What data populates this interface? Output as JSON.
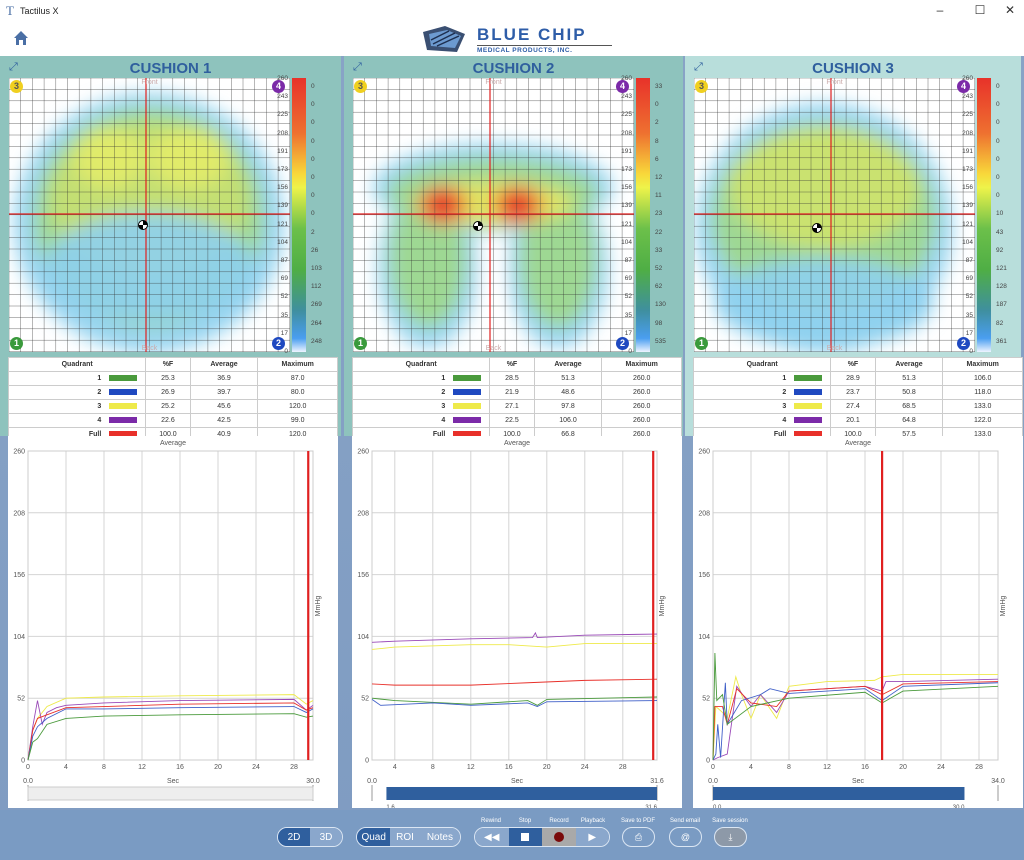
{
  "window": {
    "title": "Tactilus X",
    "icon": "tactilus-t-icon",
    "controls": [
      "minimize",
      "maximize",
      "close"
    ]
  },
  "header": {
    "home_icon": "home-icon",
    "logo_title": "BLUE CHIP",
    "logo_subtitle": "MEDICAL PRODUCTS, INC."
  },
  "scale_labels": [
    "260",
    "243",
    "225",
    "208",
    "191",
    "173",
    "156",
    "139",
    "121",
    "104",
    "87",
    "69",
    "52",
    "35",
    "17",
    "0"
  ],
  "quadrant_colors": {
    "1": "#4a9a3c",
    "2": "#1f49c0",
    "3": "#eeea4a",
    "4": "#7b2aa8",
    "Full": "#e8302a"
  },
  "table_headers": [
    "Quadrant",
    "%F",
    "Average",
    "Maximum"
  ],
  "cushions": [
    {
      "title": "CUSHION 1",
      "front_label": "Front",
      "back_label": "Back",
      "corners": [
        "3",
        "4",
        "1",
        "2"
      ],
      "scale_counts": [
        "0",
        "0",
        "0",
        "0",
        "0",
        "0",
        "0",
        "0",
        "2",
        "26",
        "103",
        "112",
        "269",
        "264",
        "248"
      ],
      "rows": [
        [
          "1",
          "25.3",
          "36.9",
          "87.0"
        ],
        [
          "2",
          "26.9",
          "39.7",
          "80.0"
        ],
        [
          "3",
          "25.2",
          "45.6",
          "120.0"
        ],
        [
          "4",
          "22.6",
          "42.5",
          "99.0"
        ],
        [
          "Full",
          "100.0",
          "40.9",
          "120.0"
        ]
      ]
    },
    {
      "title": "CUSHION 2",
      "front_label": "Front",
      "back_label": "Back",
      "corners": [
        "3",
        "4",
        "1",
        "2"
      ],
      "scale_counts": [
        "33",
        "0",
        "2",
        "8",
        "6",
        "12",
        "11",
        "23",
        "22",
        "33",
        "52",
        "62",
        "130",
        "98",
        "535"
      ],
      "rows": [
        [
          "1",
          "28.5",
          "51.3",
          "260.0"
        ],
        [
          "2",
          "21.9",
          "48.6",
          "260.0"
        ],
        [
          "3",
          "27.1",
          "97.8",
          "260.0"
        ],
        [
          "4",
          "22.5",
          "106.0",
          "260.0"
        ],
        [
          "Full",
          "100.0",
          "66.8",
          "260.0"
        ]
      ]
    },
    {
      "title": "CUSHION 3",
      "front_label": "Front",
      "back_label": "Back",
      "corners": [
        "3",
        "4",
        "1",
        "2"
      ],
      "scale_counts": [
        "0",
        "0",
        "0",
        "0",
        "0",
        "0",
        "0",
        "10",
        "43",
        "92",
        "121",
        "128",
        "187",
        "82",
        "361"
      ],
      "rows": [
        [
          "1",
          "28.9",
          "51.3",
          "106.0"
        ],
        [
          "2",
          "23.7",
          "50.8",
          "118.0"
        ],
        [
          "3",
          "27.4",
          "68.5",
          "133.0"
        ],
        [
          "4",
          "20.1",
          "64.8",
          "122.0"
        ],
        [
          "Full",
          "100.0",
          "57.5",
          "133.0"
        ]
      ]
    }
  ],
  "chart_data": [
    {
      "type": "line",
      "title": "Average",
      "xlabel": "Sec",
      "ylabel": "MmHg",
      "xlim": [
        0,
        30
      ],
      "ylim": [
        0,
        260
      ],
      "yticks": [
        0,
        52,
        104,
        156,
        208,
        260
      ],
      "xticks": [
        0,
        4,
        8,
        12,
        16,
        20,
        24,
        28
      ],
      "grid": true,
      "cursor": 29.5,
      "range": {
        "start": "0.0",
        "end": "30.0",
        "sel_start": null,
        "sel_end": null
      },
      "series": [
        {
          "quadrant": "3",
          "color": "#eeea4a",
          "points": [
            [
              0,
              0
            ],
            [
              0.5,
              25
            ],
            [
              1,
              35
            ],
            [
              2,
              45
            ],
            [
              4,
              52
            ],
            [
              8,
              53
            ],
            [
              16,
              54
            ],
            [
              28,
              55
            ],
            [
              29.3,
              47
            ],
            [
              30,
              50
            ]
          ]
        },
        {
          "quadrant": "4",
          "color": "#9a4ab8",
          "points": [
            [
              0,
              0
            ],
            [
              0.5,
              28
            ],
            [
              1,
              50
            ],
            [
              1.5,
              30
            ],
            [
              2,
              40
            ],
            [
              3,
              44
            ],
            [
              4,
              46
            ],
            [
              8,
              48
            ],
            [
              16,
              50
            ],
            [
              28,
              51
            ],
            [
              29.3,
              42
            ],
            [
              30,
              46
            ]
          ]
        },
        {
          "quadrant": "Full",
          "color": "#e8302a",
          "points": [
            [
              0,
              0
            ],
            [
              0.5,
              25
            ],
            [
              1,
              35
            ],
            [
              2,
              38
            ],
            [
              4,
              44
            ],
            [
              8,
              45
            ],
            [
              16,
              47
            ],
            [
              28,
              48
            ],
            [
              29.3,
              42
            ],
            [
              30,
              44
            ]
          ]
        },
        {
          "quadrant": "2",
          "color": "#3f5fc8",
          "points": [
            [
              0,
              0
            ],
            [
              0.5,
              20
            ],
            [
              1,
              28
            ],
            [
              2,
              35
            ],
            [
              4,
              43
            ],
            [
              8,
              43
            ],
            [
              16,
              44
            ],
            [
              28,
              45
            ],
            [
              29.3,
              40
            ],
            [
              30,
              43
            ]
          ]
        },
        {
          "quadrant": "1",
          "color": "#4a9a3c",
          "points": [
            [
              0,
              0
            ],
            [
              0.5,
              15
            ],
            [
              1,
              18
            ],
            [
              2,
              30
            ],
            [
              4,
              35
            ],
            [
              8,
              37
            ],
            [
              16,
              38
            ],
            [
              28,
              39
            ],
            [
              29.3,
              36
            ],
            [
              30,
              37
            ]
          ]
        }
      ]
    },
    {
      "type": "line",
      "title": "Average",
      "xlabel": "Sec",
      "ylabel": "MmHg",
      "xlim": [
        1.6,
        31.6
      ],
      "ylim": [
        0,
        260
      ],
      "yticks": [
        0,
        52,
        104,
        156,
        208,
        260
      ],
      "xticks": [
        4,
        8,
        12,
        16,
        20,
        24,
        28
      ],
      "grid": true,
      "cursor": 31.2,
      "range": {
        "start": "0.0",
        "end": "31.6",
        "sel_start": "1.6",
        "sel_end": "31.6"
      },
      "series": [
        {
          "quadrant": "4",
          "color": "#9a4ab8",
          "points": [
            [
              1.6,
              99
            ],
            [
              4,
              100
            ],
            [
              12,
              102
            ],
            [
              18.5,
              103
            ],
            [
              18.8,
              107
            ],
            [
              19,
              103
            ],
            [
              24,
              105
            ],
            [
              31.6,
              106
            ]
          ]
        },
        {
          "quadrant": "3",
          "color": "#eeea4a",
          "points": [
            [
              1.6,
              93
            ],
            [
              4,
              95
            ],
            [
              12,
              97
            ],
            [
              16,
              97
            ],
            [
              20,
              95
            ],
            [
              24,
              98
            ],
            [
              31.6,
              98
            ]
          ]
        },
        {
          "quadrant": "Full",
          "color": "#e8302a",
          "points": [
            [
              1.6,
              64
            ],
            [
              4,
              63
            ],
            [
              12,
              63
            ],
            [
              18,
              65
            ],
            [
              24,
              67
            ],
            [
              31.6,
              68
            ]
          ]
        },
        {
          "quadrant": "1",
          "color": "#4a9a3c",
          "points": [
            [
              1.6,
              52
            ],
            [
              4,
              50
            ],
            [
              12,
              47
            ],
            [
              18,
              50
            ],
            [
              19,
              46
            ],
            [
              20,
              51
            ],
            [
              31.6,
              53
            ]
          ]
        },
        {
          "quadrant": "2",
          "color": "#3f5fc8",
          "points": [
            [
              1.6,
              51
            ],
            [
              2.5,
              46
            ],
            [
              8,
              48
            ],
            [
              12,
              46
            ],
            [
              18,
              48
            ],
            [
              19,
              45
            ],
            [
              20,
              49
            ],
            [
              31.6,
              50
            ]
          ]
        }
      ]
    },
    {
      "type": "line",
      "title": "Average",
      "xlabel": "Sec",
      "ylabel": "MmHg",
      "xlim": [
        0,
        30
      ],
      "ylim": [
        0,
        260
      ],
      "yticks": [
        0,
        52,
        104,
        156,
        208,
        260
      ],
      "xticks": [
        0,
        4,
        8,
        12,
        16,
        20,
        24,
        28
      ],
      "grid": true,
      "cursor": 17.8,
      "range": {
        "start": "0.0",
        "end": "34.0",
        "sel_start": "0.0",
        "sel_end": "30.0"
      },
      "series": [
        {
          "quadrant": "3",
          "color": "#eeea4a",
          "points": [
            [
              0,
              0
            ],
            [
              0.3,
              45
            ],
            [
              1,
              40
            ],
            [
              1.5,
              35
            ],
            [
              2.4,
              70
            ],
            [
              3,
              55
            ],
            [
              4,
              35
            ],
            [
              5,
              55
            ],
            [
              6.7,
              35
            ],
            [
              8,
              62
            ],
            [
              12,
              66
            ],
            [
              17,
              67
            ],
            [
              17.8,
              70
            ],
            [
              20,
              72
            ],
            [
              30,
              72
            ]
          ]
        },
        {
          "quadrant": "4",
          "color": "#9a4ab8",
          "points": [
            [
              0,
              0
            ],
            [
              0.5,
              2
            ],
            [
              1.5,
              5
            ],
            [
              2.5,
              62
            ],
            [
              4,
              45
            ],
            [
              5,
              55
            ],
            [
              6.7,
              40
            ],
            [
              8,
              58
            ],
            [
              16,
              62
            ],
            [
              17.8,
              58
            ],
            [
              18.2,
              66
            ],
            [
              20,
              66
            ],
            [
              30,
              68
            ]
          ]
        },
        {
          "quadrant": "Full",
          "color": "#e8302a",
          "points": [
            [
              0,
              0
            ],
            [
              0.2,
              45
            ],
            [
              1,
              45
            ],
            [
              1.5,
              30
            ],
            [
              2.5,
              60
            ],
            [
              4,
              48
            ],
            [
              6.7,
              45
            ],
            [
              8,
              58
            ],
            [
              16,
              62
            ],
            [
              17.8,
              55
            ],
            [
              20,
              64
            ],
            [
              30,
              66
            ]
          ]
        },
        {
          "quadrant": "2",
          "color": "#3f5fc8",
          "points": [
            [
              0,
              0
            ],
            [
              0.3,
              5
            ],
            [
              0.5,
              30
            ],
            [
              0.8,
              2
            ],
            [
              1.3,
              65
            ],
            [
              1.5,
              30
            ],
            [
              3,
              50
            ],
            [
              5,
              55
            ],
            [
              6,
              60
            ],
            [
              8,
              56
            ],
            [
              16,
              60
            ],
            [
              17.8,
              50
            ],
            [
              20,
              62
            ],
            [
              30,
              65
            ]
          ]
        },
        {
          "quadrant": "1",
          "color": "#4a9a3c",
          "points": [
            [
              0,
              0
            ],
            [
              0.2,
              90
            ],
            [
              0.4,
              50
            ],
            [
              1,
              55
            ],
            [
              1.5,
              30
            ],
            [
              4,
              45
            ],
            [
              8,
              52
            ],
            [
              16,
              57
            ],
            [
              17.8,
              48
            ],
            [
              20,
              58
            ],
            [
              30,
              62
            ]
          ]
        }
      ]
    }
  ],
  "toolbar": {
    "view_modes": [
      "2D",
      "3D"
    ],
    "view_selected": "2D",
    "analysis_modes": [
      "Quad",
      "ROI",
      "Notes"
    ],
    "analysis_selected": "Quad",
    "transport": [
      {
        "label": "Rewind",
        "icon": "rewind-icon"
      },
      {
        "label": "Stop",
        "icon": "stop-icon"
      },
      {
        "label": "Record",
        "icon": "record-icon"
      },
      {
        "label": "Playback",
        "icon": "play-icon"
      }
    ],
    "save_pdf": "Save to PDF",
    "send_email": "Send email",
    "save_session": "Save session"
  }
}
